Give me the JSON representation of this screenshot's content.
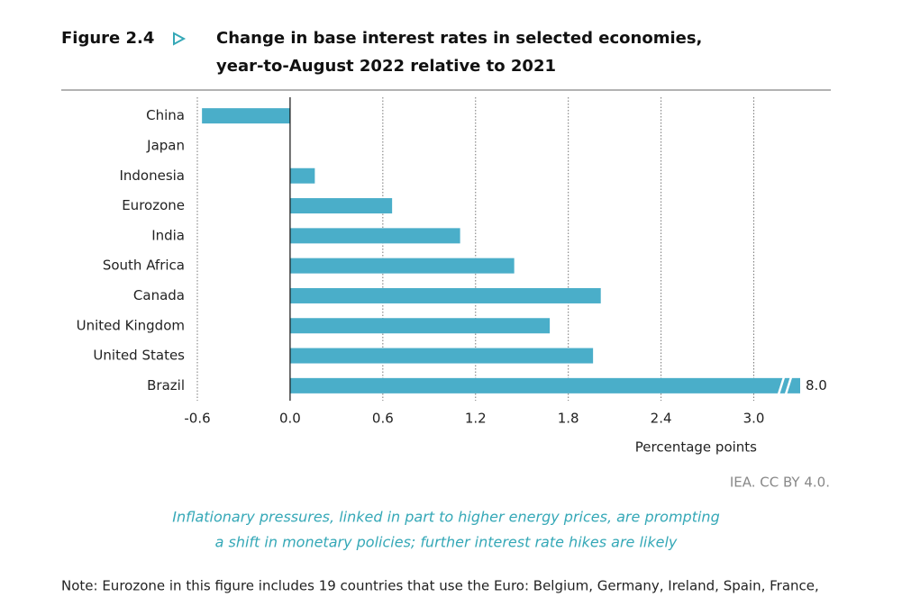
{
  "chart_data": {
    "type": "bar",
    "orientation": "horizontal",
    "figure_label": "Figure 2.4",
    "title": [
      "Change in base interest rates in selected economies,",
      "year-to-August 2022 relative to 2021"
    ],
    "categories": [
      "China",
      "Japan",
      "Indonesia",
      "Eurozone",
      "India",
      "South Africa",
      "Canada",
      "United Kingdom",
      "United States",
      "Brazil"
    ],
    "values": [
      -0.57,
      0,
      0.16,
      0.66,
      1.1,
      1.45,
      2.01,
      1.68,
      1.96,
      8
    ],
    "value_labels": [
      null,
      null,
      null,
      null,
      null,
      null,
      null,
      null,
      null,
      "8.0"
    ],
    "color": "#4aaec9",
    "xlim": [
      -0.6,
      3.3
    ],
    "xticks": [
      -0.6,
      {
        "value": 0,
        "label": "0.0"
      },
      0.6,
      1.2,
      1.8,
      2.4,
      {
        "value": 3,
        "label": "3.0"
      }
    ],
    "grid": true,
    "xlabel": "Percentage points",
    "source": "IEA. CC BY 4.0.",
    "annotation": [
      "Inflationary pressures, linked in part to higher energy prices, are prompting",
      "a shift in monetary policies; further interest rate hikes are likely"
    ],
    "note": "Note: Eurozone in this figure includes 19 countries that use the Euro: Belgium, Germany, Ireland, Spain, France,"
  }
}
